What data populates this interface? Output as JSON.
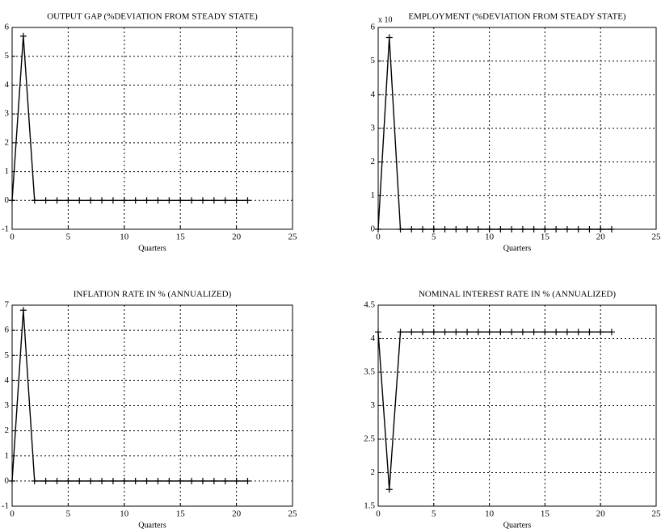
{
  "chart_data": [
    {
      "type": "line",
      "title": "OUTPUT GAP (%DEVIATION FROM STEADY STATE)",
      "xlabel": "Quarters",
      "x": [
        0,
        1,
        2,
        3,
        4,
        5,
        6,
        7,
        8,
        9,
        10,
        11,
        12,
        13,
        14,
        15,
        16,
        17,
        18,
        19,
        20,
        21
      ],
      "values": [
        0,
        5.7,
        0,
        0,
        0,
        0,
        0,
        0,
        0,
        0,
        0,
        0,
        0,
        0,
        0,
        0,
        0,
        0,
        0,
        0,
        0,
        0
      ],
      "xlim": [
        0,
        25
      ],
      "xticks": [
        0,
        5,
        10,
        15,
        20,
        25
      ],
      "ylim": [
        -1,
        6
      ],
      "yticks": [
        -1,
        0,
        1,
        2,
        3,
        4,
        5,
        6
      ],
      "grid": true,
      "color": "#000000",
      "marker": "+"
    },
    {
      "type": "line",
      "title": "EMPLOYMENT (%DEVIATION FROM STEADY STATE)",
      "xlabel": "Quarters",
      "annotation": "x 10",
      "x": [
        0,
        1,
        2,
        3,
        4,
        5,
        6,
        7,
        8,
        9,
        10,
        11,
        12,
        13,
        14,
        15,
        16,
        17,
        18,
        19,
        20,
        21
      ],
      "values": [
        0,
        5.7,
        0,
        0,
        0,
        0,
        0,
        0,
        0,
        0,
        0,
        0,
        0,
        0,
        0,
        0,
        0,
        0,
        0,
        0,
        0,
        0
      ],
      "xlim": [
        0,
        25
      ],
      "xticks": [
        0,
        5,
        10,
        15,
        20,
        25
      ],
      "ylim": [
        0,
        6
      ],
      "yticks": [
        0,
        1,
        2,
        3,
        4,
        5,
        6
      ],
      "grid": true,
      "color": "#000000",
      "marker": "+"
    },
    {
      "type": "line",
      "title": "INFLATION RATE IN % (ANNUALIZED)",
      "xlabel": "Quarters",
      "x": [
        0,
        1,
        2,
        3,
        4,
        5,
        6,
        7,
        8,
        9,
        10,
        11,
        12,
        13,
        14,
        15,
        16,
        17,
        18,
        19,
        20,
        21
      ],
      "values": [
        0,
        6.8,
        0,
        0,
        0,
        0,
        0,
        0,
        0,
        0,
        0,
        0,
        0,
        0,
        0,
        0,
        0,
        0,
        0,
        0,
        0,
        0
      ],
      "xlim": [
        0,
        25
      ],
      "xticks": [
        0,
        5,
        10,
        15,
        20,
        25
      ],
      "ylim": [
        -1,
        7
      ],
      "yticks": [
        -1,
        0,
        1,
        2,
        3,
        4,
        5,
        6,
        7
      ],
      "grid": true,
      "color": "#000000",
      "marker": "+"
    },
    {
      "type": "line",
      "title": "NOMINAL INTEREST RATE IN % (ANNUALIZED)",
      "xlabel": "Quarters",
      "x": [
        0,
        1,
        2,
        3,
        4,
        5,
        6,
        7,
        8,
        9,
        10,
        11,
        12,
        13,
        14,
        15,
        16,
        17,
        18,
        19,
        20,
        21
      ],
      "values": [
        4.1,
        1.75,
        4.1,
        4.1,
        4.1,
        4.1,
        4.1,
        4.1,
        4.1,
        4.1,
        4.1,
        4.1,
        4.1,
        4.1,
        4.1,
        4.1,
        4.1,
        4.1,
        4.1,
        4.1,
        4.1,
        4.1
      ],
      "xlim": [
        0,
        25
      ],
      "xticks": [
        0,
        5,
        10,
        15,
        20,
        25
      ],
      "ylim": [
        1.5,
        4.5
      ],
      "yticks": [
        1.5,
        2,
        2.5,
        3,
        3.5,
        4,
        4.5
      ],
      "grid": true,
      "color": "#000000",
      "marker": "+"
    }
  ]
}
